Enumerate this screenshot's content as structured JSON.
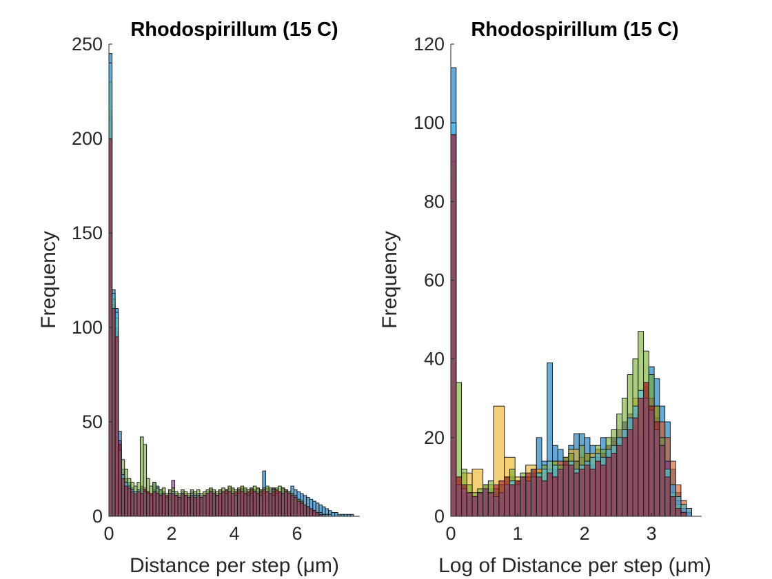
{
  "colors": {
    "series": [
      "#0072BD",
      "#D95319",
      "#EDB120",
      "#7E2F8E",
      "#77AC30",
      "#4DBEEE",
      "#A2142F"
    ],
    "axis": "#262626"
  },
  "chart_data": [
    {
      "type": "bar",
      "title": "Rhodospirillum (15 C)",
      "xlabel": "Distance per step (μm)",
      "ylabel": "Frequency",
      "xlim": [
        0,
        8
      ],
      "ylim": [
        0,
        250
      ],
      "xticks": [
        "0",
        "2",
        "4",
        "6"
      ],
      "xtick_values": [
        0,
        2,
        4,
        6
      ],
      "yticks": [
        "0",
        "50",
        "100",
        "150",
        "200",
        "250"
      ],
      "ytick_values": [
        0,
        50,
        100,
        150,
        200,
        250
      ],
      "grid": false,
      "bin_width": 0.1,
      "series": [
        {
          "start": 0,
          "values": [
            245,
            120,
            110,
            45,
            25,
            20,
            18,
            15,
            12,
            14,
            15,
            13,
            12,
            12,
            18,
            16,
            14,
            12,
            10,
            12,
            13,
            11,
            10,
            12,
            11,
            10,
            12,
            11,
            12,
            10,
            11,
            12,
            12,
            13,
            11,
            12,
            13,
            14,
            12,
            13,
            12,
            13,
            14,
            13,
            12,
            13,
            14,
            13,
            14,
            24,
            13,
            14,
            15,
            14,
            13,
            15,
            14,
            13,
            16,
            14,
            13,
            12,
            11,
            10,
            9,
            8,
            7,
            6,
            5,
            4,
            3,
            2,
            2,
            1,
            1,
            1,
            1,
            1
          ]
        },
        {
          "start": 0,
          "values": [
            215,
            100,
            95,
            30,
            20,
            15,
            14,
            12,
            10,
            12,
            11,
            14,
            12,
            10,
            12,
            10,
            9,
            10,
            8,
            10,
            12,
            10,
            9,
            11,
            10,
            9,
            10,
            9,
            11,
            10,
            10,
            12,
            11,
            12,
            11,
            13,
            12,
            12,
            13,
            12,
            11,
            12,
            13,
            12,
            11,
            12,
            13,
            12,
            11,
            12,
            13,
            12,
            11,
            13,
            12,
            11,
            12,
            11,
            10,
            9,
            8,
            7,
            6,
            5,
            4,
            3,
            2,
            2,
            1,
            1
          ]
        },
        {
          "start": 0,
          "values": [
            210,
            98,
            92,
            25,
            18,
            14,
            12,
            11,
            10,
            11,
            10,
            12,
            11,
            10,
            11,
            10,
            9,
            10,
            9,
            10,
            11,
            10,
            9,
            10,
            10,
            9,
            10,
            9,
            10,
            9,
            10,
            11,
            10,
            11,
            10,
            11,
            10,
            11,
            10,
            11,
            10,
            11,
            10,
            11,
            10,
            11,
            10,
            11,
            10,
            11,
            10,
            11,
            10,
            11,
            10,
            11,
            10,
            9,
            8,
            7,
            6,
            5,
            4,
            3,
            2,
            2,
            1,
            1
          ]
        },
        {
          "start": 0,
          "values": [
            212,
            112,
            100,
            40,
            22,
            18,
            16,
            14,
            12,
            13,
            16,
            15,
            13,
            12,
            14,
            13,
            12,
            13,
            11,
            14,
            19,
            12,
            11,
            13,
            12,
            11,
            13,
            12,
            12,
            11,
            12,
            13,
            14,
            13,
            12,
            14,
            13,
            14,
            15,
            14,
            13,
            14,
            15,
            14,
            13,
            15,
            14,
            15,
            14,
            13,
            15,
            14,
            15,
            14,
            13,
            15,
            14,
            13,
            12,
            11,
            9,
            8,
            6,
            5,
            4,
            3,
            2,
            1,
            1
          ]
        },
        {
          "start": 0,
          "values": [
            230,
            115,
            105,
            35,
            30,
            25,
            20,
            18,
            16,
            18,
            42,
            38,
            20,
            16,
            18,
            15,
            14,
            15,
            12,
            14,
            15,
            13,
            12,
            14,
            13,
            12,
            14,
            13,
            14,
            12,
            13,
            14,
            15,
            14,
            13,
            14,
            15,
            14,
            16,
            15,
            14,
            15,
            16,
            15,
            14,
            15,
            16,
            15,
            14,
            15,
            16,
            15,
            14,
            15,
            16,
            15,
            14,
            13,
            12,
            10,
            9,
            8,
            6,
            5,
            4,
            3,
            2,
            1
          ]
        },
        {
          "start": 0,
          "values": [
            240,
            118,
            108,
            35,
            22,
            18,
            16,
            14,
            13,
            14,
            12,
            13,
            12,
            11,
            13,
            12,
            11,
            12,
            10,
            12,
            13,
            11,
            10,
            12,
            11,
            10,
            12,
            11,
            12,
            10,
            11,
            12,
            13,
            12,
            11,
            12,
            13,
            12,
            13,
            12,
            11,
            12,
            13,
            12,
            11,
            12,
            13,
            12,
            11,
            12,
            13,
            12,
            11,
            12,
            13,
            12,
            13,
            12,
            11,
            10,
            8,
            7,
            6,
            5,
            4,
            3,
            2,
            2,
            1,
            1,
            1
          ]
        },
        {
          "start": 0,
          "values": [
            200,
            110,
            95,
            38,
            20,
            16,
            15,
            13,
            12,
            13,
            12,
            14,
            13,
            12,
            13,
            12,
            11,
            12,
            11,
            12,
            12,
            11,
            10,
            12,
            11,
            10,
            11,
            10,
            11,
            10,
            11,
            12,
            13,
            12,
            11,
            12,
            13,
            14,
            13,
            12,
            13,
            14,
            13,
            12,
            13,
            14,
            13,
            12,
            13,
            14,
            13,
            12,
            13,
            14,
            13,
            12,
            13,
            12,
            11,
            10,
            8,
            7,
            6,
            5,
            4,
            3,
            2,
            1
          ]
        }
      ]
    },
    {
      "type": "bar",
      "title": "Rhodospirillum (15 C)",
      "xlabel": "Log of Distance per step (μm)",
      "ylabel": "Frequency",
      "xlim": [
        0,
        3.75
      ],
      "ylim": [
        0,
        120
      ],
      "xticks": [
        "0",
        "1",
        "2",
        "3"
      ],
      "xtick_values": [
        0,
        1,
        2,
        3
      ],
      "yticks": [
        "0",
        "20",
        "40",
        "60",
        "80",
        "100",
        "120"
      ],
      "ytick_values": [
        0,
        20,
        40,
        60,
        80,
        100,
        120
      ],
      "grid": false,
      "series": [
        {
          "start": 0,
          "width": 0.08,
          "values": [
            114,
            10,
            8,
            6,
            5,
            6,
            8,
            7,
            6,
            5,
            7,
            10,
            8,
            9,
            7,
            8,
            20,
            14,
            39,
            18,
            17,
            15,
            18,
            21,
            21,
            20,
            18,
            16,
            20,
            16,
            20,
            18,
            24,
            25,
            27,
            30,
            33,
            38,
            35,
            28,
            24,
            12,
            6,
            3,
            1
          ]
        },
        {
          "start": 0,
          "width": 0.08,
          "values": [
            86,
            9,
            7,
            6,
            5,
            6,
            5,
            6,
            5,
            6,
            7,
            8,
            9,
            8,
            10,
            9,
            12,
            11,
            13,
            12,
            14,
            15,
            16,
            14,
            15,
            16,
            15,
            17,
            16,
            18,
            19,
            20,
            22,
            24,
            26,
            28,
            34,
            30,
            28,
            24,
            20,
            14,
            8,
            4,
            2
          ]
        },
        {
          "start": 0,
          "width": 0.16,
          "values": [
            10,
            11,
            12,
            8,
            28,
            15,
            10,
            13,
            12,
            14,
            11,
            17,
            12,
            16,
            13,
            18,
            22,
            30,
            28,
            16,
            6,
            3
          ]
        },
        {
          "start": 0,
          "width": 0.08,
          "values": [
            97,
            8,
            6,
            5,
            4,
            5,
            6,
            5,
            4,
            6,
            7,
            8,
            9,
            10,
            9,
            11,
            10,
            9,
            11,
            12,
            10,
            12,
            13,
            14,
            12,
            14,
            13,
            15,
            16,
            18,
            20,
            22,
            24,
            26,
            22,
            20,
            28,
            30,
            25,
            20,
            14,
            8,
            4,
            2,
            1
          ]
        },
        {
          "start": 0,
          "width": 0.08,
          "values": [
            90,
            34,
            12,
            8,
            6,
            7,
            8,
            9,
            7,
            8,
            10,
            12,
            9,
            11,
            10,
            12,
            11,
            13,
            12,
            14,
            13,
            15,
            16,
            14,
            18,
            16,
            15,
            18,
            17,
            20,
            22,
            26,
            30,
            36,
            40,
            47,
            42,
            36,
            28,
            20,
            12,
            6,
            3,
            1
          ]
        },
        {
          "start": 0,
          "width": 0.08,
          "values": [
            100,
            8,
            7,
            6,
            5,
            6,
            7,
            6,
            5,
            6,
            8,
            9,
            8,
            10,
            9,
            10,
            11,
            12,
            14,
            13,
            12,
            13,
            14,
            12,
            13,
            14,
            15,
            16,
            15,
            17,
            18,
            20,
            22,
            25,
            28,
            32,
            30,
            27,
            22,
            18,
            12,
            8,
            5,
            3,
            2
          ]
        },
        {
          "start": 0,
          "width": 0.08,
          "values": [
            97,
            10,
            8,
            6,
            5,
            6,
            7,
            6,
            8,
            9,
            10,
            8,
            9,
            10,
            11,
            12,
            10,
            9,
            11,
            10,
            12,
            14,
            13,
            11,
            12,
            13,
            12,
            14,
            13,
            15,
            16,
            18,
            20,
            22,
            25,
            30,
            34,
            28,
            24,
            18,
            10,
            5,
            2,
            1
          ]
        }
      ]
    }
  ]
}
